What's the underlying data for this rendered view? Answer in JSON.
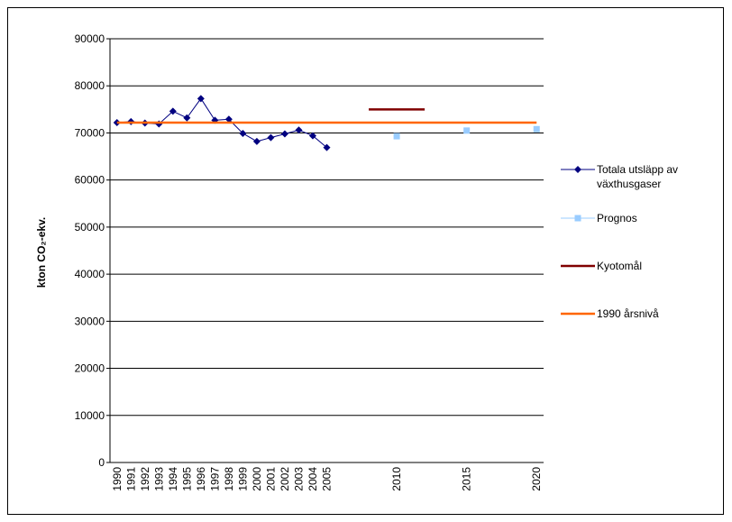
{
  "chart_data": {
    "type": "line",
    "y_label": "kton CO₂-ekv.",
    "categories": [
      "1990",
      "1991",
      "1992",
      "1993",
      "1994",
      "1995",
      "1996",
      "1997",
      "1998",
      "1999",
      "2000",
      "2001",
      "2002",
      "2003",
      "2004",
      "2005",
      null,
      null,
      null,
      null,
      "2010",
      null,
      null,
      null,
      null,
      "2015",
      null,
      null,
      null,
      null,
      "2020"
    ],
    "series": [
      {
        "name": "Totala utsläpp av växthusgaser",
        "color": "#000080",
        "marker": "diamond",
        "values": [
          72200,
          72400,
          72100,
          71900,
          74600,
          73200,
          77300,
          72700,
          72900,
          69900,
          68200,
          69000,
          69800,
          70600,
          69400,
          66900,
          null,
          null,
          null,
          null,
          null,
          null,
          null,
          null,
          null,
          null,
          null,
          null,
          null,
          null,
          null
        ]
      },
      {
        "name": "Prognos",
        "color": "#99ccff",
        "marker": "square",
        "values": [
          null,
          null,
          null,
          null,
          null,
          null,
          null,
          null,
          null,
          null,
          null,
          null,
          null,
          null,
          null,
          null,
          null,
          null,
          null,
          null,
          69300,
          null,
          null,
          null,
          null,
          70500,
          null,
          null,
          null,
          null,
          70800
        ]
      },
      {
        "name": "Kyotomål",
        "color": "#800000",
        "marker": "none",
        "values": [
          null,
          null,
          null,
          null,
          null,
          null,
          null,
          null,
          null,
          null,
          null,
          null,
          null,
          null,
          null,
          null,
          null,
          null,
          75000,
          75000,
          75000,
          75000,
          75000,
          null,
          null,
          null,
          null,
          null,
          null,
          null,
          null
        ]
      },
      {
        "name": "1990 årsnivå",
        "color": "#ff6600",
        "marker": "none",
        "values": [
          72200,
          72200,
          72200,
          72200,
          72200,
          72200,
          72200,
          72200,
          72200,
          72200,
          72200,
          72200,
          72200,
          72200,
          72200,
          72200,
          72200,
          72200,
          72200,
          72200,
          72200,
          72200,
          72200,
          72200,
          72200,
          72200,
          72200,
          72200,
          72200,
          72200,
          72200
        ]
      }
    ],
    "ylim": [
      0,
      90000
    ],
    "yticks": [
      0,
      10000,
      20000,
      30000,
      40000,
      50000,
      60000,
      70000,
      80000,
      90000
    ],
    "grid": true,
    "legend": "right"
  }
}
